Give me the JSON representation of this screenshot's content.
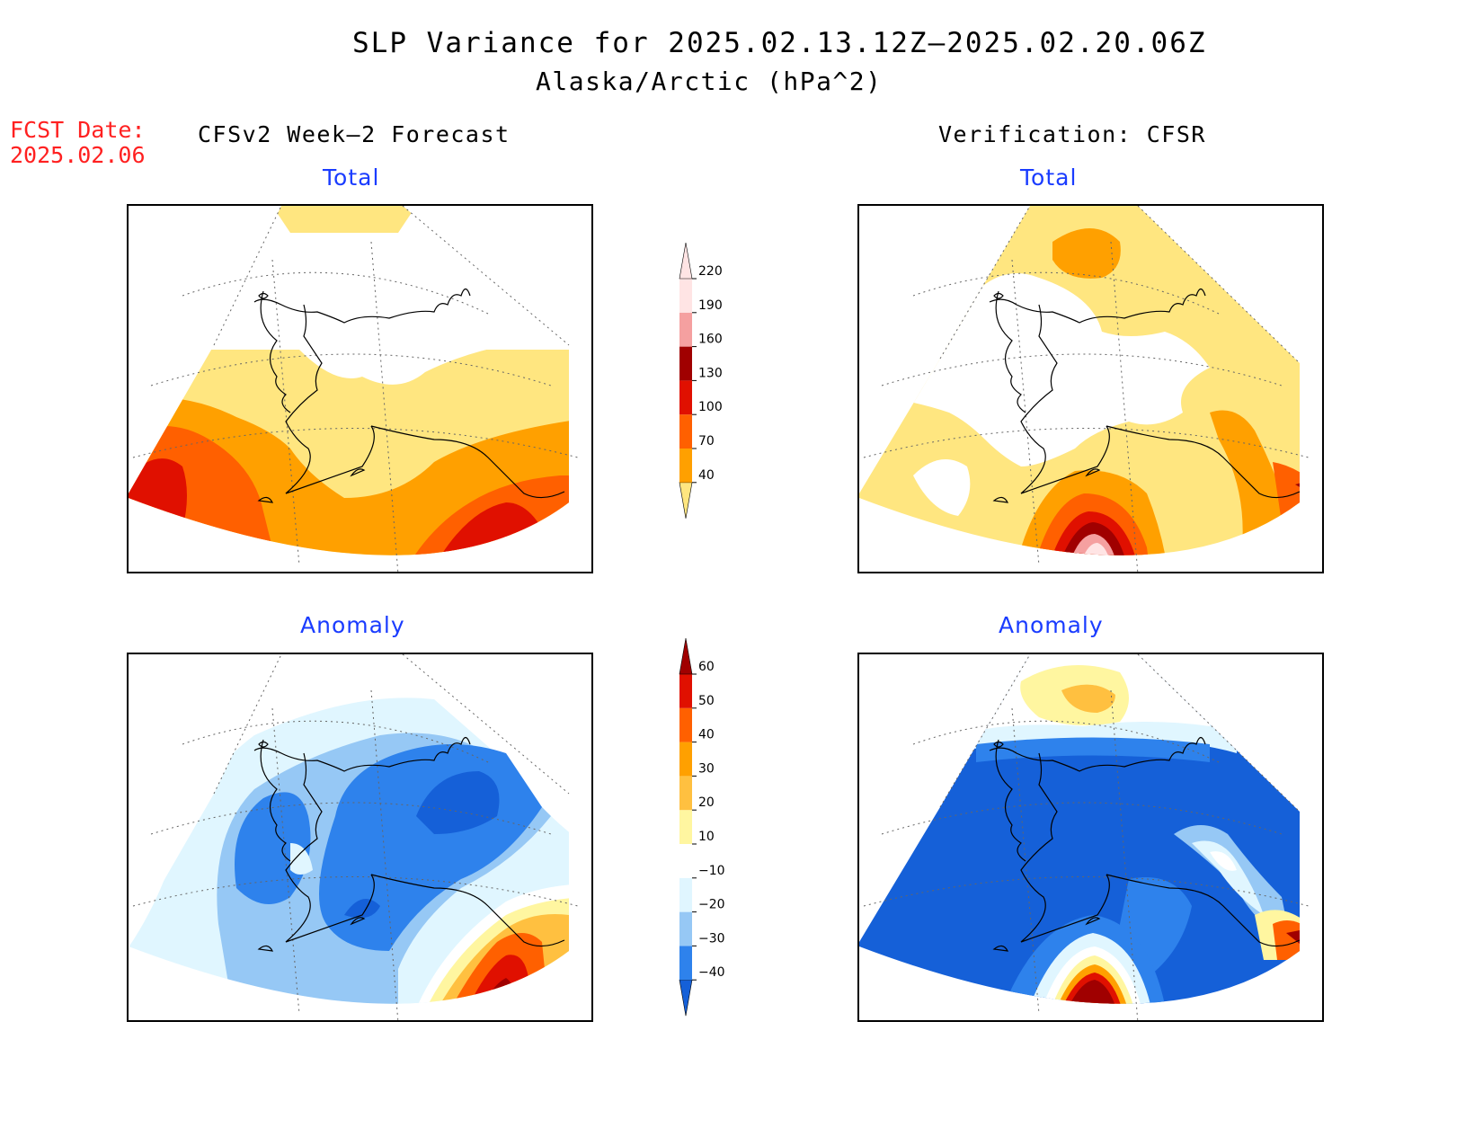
{
  "title": "SLP Variance for 2025.02.13.12Z–2025.02.20.06Z",
  "subtitle": "Alaska/Arctic (hPa^2)",
  "fcst_date": {
    "label": "FCST Date:",
    "value": "2025.02.06"
  },
  "column_headers": {
    "forecast": "CFSv2 Week–2 Forecast",
    "verification": "Verification: CFSR"
  },
  "panels": {
    "forecast_total": {
      "title": "Total"
    },
    "verification_total": {
      "title": "Total"
    },
    "forecast_anomaly": {
      "title": "Anomaly"
    },
    "verification_anomaly": {
      "title": "Anomaly"
    }
  },
  "colorbars": {
    "total": {
      "labels": [
        "40",
        "70",
        "100",
        "130",
        "160",
        "190",
        "220"
      ],
      "colors": [
        "#ffe680",
        "#ffa000",
        "#ff6000",
        "#e01000",
        "#a00000",
        "#f5a0a0",
        "#ffe4e4"
      ]
    },
    "anomaly": {
      "labels": [
        "−40",
        "−30",
        "−20",
        "−10",
        "10",
        "20",
        "30",
        "40",
        "50",
        "60"
      ],
      "colors": [
        "#1560d8",
        "#2e82ec",
        "#96c8f5",
        "#e0f6ff",
        "#ffffff",
        "#fff6a0",
        "#ffc040",
        "#ffa000",
        "#ff6000",
        "#e01000",
        "#a00000"
      ]
    }
  }
}
